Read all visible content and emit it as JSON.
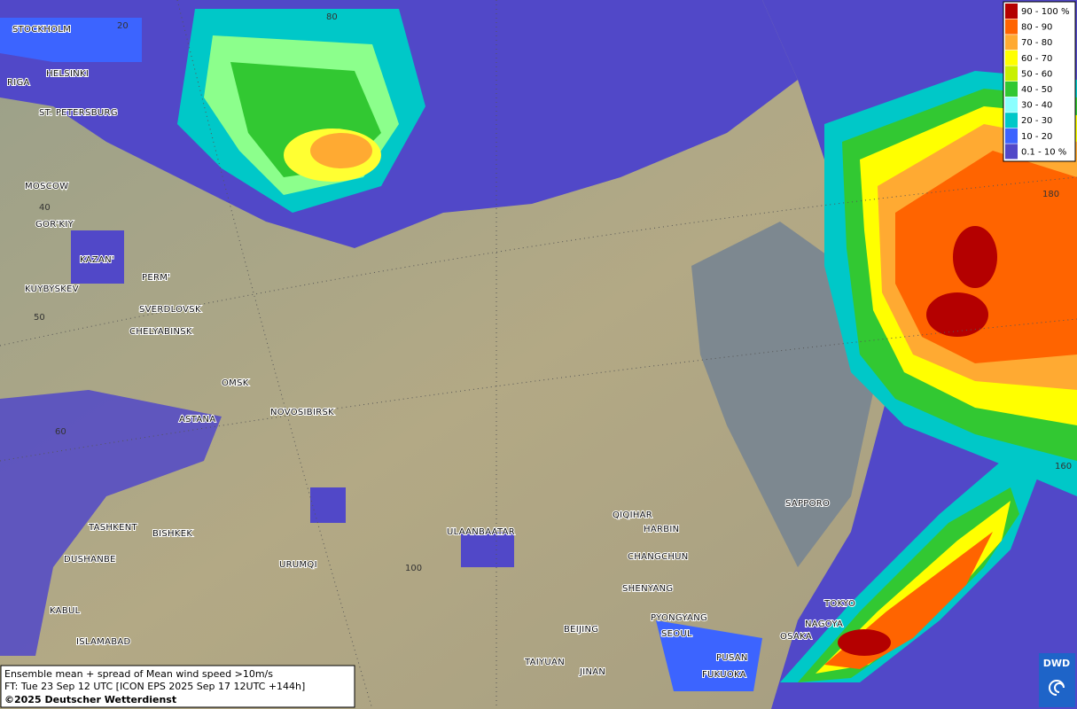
{
  "grid_labels": [
    "20",
    "80",
    "40",
    "50",
    "60",
    "100",
    "160",
    "180"
  ],
  "cities": [
    "STOCKHOLM",
    "HELSINKI",
    "RIGA",
    "ST. PETERSBURG",
    "MOSCOW",
    "GOR'KIY",
    "KAZAN'",
    "PERM'",
    "KUYBYSKEV",
    "SVERDLOVSK",
    "CHELYABINSK",
    "OMSK",
    "NOVOSIBIRSK",
    "ASTANA",
    "TASHKENT",
    "BISHKEK",
    "DUSHANBE",
    "URUMQI",
    "KABUL",
    "ISLAMABAD",
    "ULAANBAATAR",
    "QIQIHAR",
    "HARBIN",
    "CHANGCHUN",
    "SHENYANG",
    "BEIJING",
    "PYONGYANG",
    "SEOUL",
    "TAIYUAN",
    "JINAN",
    "PUSAN",
    "FUKUOKA",
    "SAPPORO",
    "TOKYO",
    "NAGOYA",
    "OSAKA"
  ],
  "legend": [
    {
      "label": "90 - 100 %",
      "color": "#b40000"
    },
    {
      "label": "80 - 90",
      "color": "#ff6400"
    },
    {
      "label": "70 - 80",
      "color": "#ffaa32"
    },
    {
      "label": "60 - 70",
      "color": "#ffff00"
    },
    {
      "label": "50 - 60",
      "color": "#c8f000"
    },
    {
      "label": "40 - 50",
      "color": "#32c832"
    },
    {
      "label": "30 - 40",
      "color": "#8cffff"
    },
    {
      "label": "20 - 30",
      "color": "#00c8c8"
    },
    {
      "label": "10 - 20",
      "color": "#3c64ff"
    },
    {
      "label": "0.1 - 10 %",
      "color": "#5148c8"
    }
  ],
  "footer": {
    "line1": "Ensemble mean + spread of Mean wind speed >10m/s",
    "line2": "FT: Tue 23 Sep 12 UTC [ICON EPS 2025 Sep 17 12UTC +144h]",
    "copyright": "©2025 Deutscher Wetterdienst"
  },
  "logo": "DWD"
}
